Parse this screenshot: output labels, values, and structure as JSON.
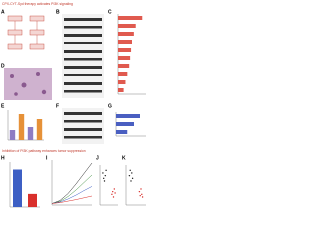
{
  "header": {
    "title": "CPX-CYT-Syd therapy activates PI3K signaling"
  },
  "section_title": "Inhibition of PI3K pathway enhances tumor suppression",
  "panels": [
    {
      "letter": "A"
    },
    {
      "letter": "B"
    },
    {
      "letter": "C",
      "type": "hbar",
      "values": [
        2.6,
        1.9,
        1.7,
        1.5,
        1.4,
        1.3,
        1.2,
        1.0,
        0.8,
        0.6
      ],
      "color": "#e05a4f",
      "xlim": [
        0,
        3
      ]
    },
    {
      "letter": "D"
    },
    {
      "letter": "E",
      "type": "bar",
      "values": [
        1.0,
        2.6,
        1.3,
        2.1
      ],
      "colors": [
        "#8e7cc3",
        "#e69138",
        "#8e7cc3",
        "#e69138"
      ],
      "ylim": [
        0,
        3
      ]
    },
    {
      "letter": "F"
    },
    {
      "letter": "G",
      "type": "hbar",
      "values": [
        3.2,
        2.4,
        1.5
      ],
      "color": "#4a5fc1",
      "xlim": [
        0,
        4
      ]
    },
    {
      "letter": "H",
      "type": "bar",
      "values": [
        1.0,
        0.35
      ],
      "colors": [
        "#3d5fc4",
        "#d9302c"
      ],
      "ylim": [
        0,
        1.2
      ]
    },
    {
      "letter": "I",
      "type": "line",
      "x": [
        0,
        5,
        10,
        15,
        20,
        25
      ],
      "xlim": [
        0,
        25
      ],
      "ylim": [
        0,
        1500
      ],
      "series": [
        {
          "color": "#222222",
          "values": [
            50,
            150,
            380,
            700,
            1050,
            1400
          ]
        },
        {
          "color": "#3d8f3d",
          "values": [
            50,
            120,
            280,
            500,
            750,
            1000
          ]
        },
        {
          "color": "#3d5fc4",
          "values": [
            50,
            100,
            200,
            330,
            480,
            620
          ]
        },
        {
          "color": "#d9302c",
          "values": [
            50,
            80,
            130,
            180,
            240,
            300
          ]
        }
      ]
    },
    {
      "letter": "J",
      "type": "dots",
      "ylim": [
        0,
        1.5
      ],
      "groups": [
        {
          "color": "#222222",
          "values": [
            1.2,
            1.0,
            0.9,
            1.1,
            1.3
          ]
        },
        {
          "color": "#d9302c",
          "values": [
            0.4,
            0.5,
            0.3,
            0.6,
            0.45
          ]
        }
      ]
    },
    {
      "letter": "K",
      "type": "dots",
      "ylim": [
        0,
        1.5
      ],
      "groups": [
        {
          "color": "#222222",
          "values": [
            1.1,
            1.3,
            0.9,
            1.2,
            1.0
          ]
        },
        {
          "color": "#d9302c",
          "values": [
            0.5,
            0.35,
            0.6,
            0.4,
            0.3
          ]
        }
      ]
    }
  ]
}
